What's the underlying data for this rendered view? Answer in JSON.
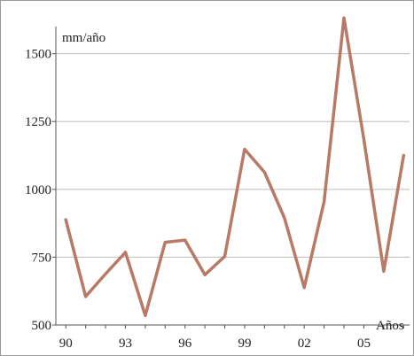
{
  "chart_data": {
    "type": "line",
    "title": "",
    "ylabel": "mm/año",
    "xlabel": "Años",
    "x": [
      1990,
      1991,
      1992,
      1993,
      1994,
      1995,
      1996,
      1997,
      1998,
      1999,
      2000,
      2001,
      2002,
      2003,
      2004,
      2005,
      2006,
      2007
    ],
    "series": [
      {
        "values": [
          888,
          605,
          688,
          768,
          535,
          805,
          813,
          685,
          753,
          1148,
          1063,
          895,
          638,
          955,
          1632,
          1185,
          698,
          1125
        ],
        "color": "#b87a66"
      }
    ],
    "ylim": [
      500,
      1600
    ],
    "xlim": [
      1989.5,
      2007.3
    ],
    "yticks": [
      500,
      750,
      1000,
      1250,
      1500
    ],
    "ytick_labels": [
      "500",
      "750",
      "1000",
      "1250",
      "1500"
    ],
    "xticks": [
      1990,
      1993,
      1996,
      1999,
      2002,
      2005
    ],
    "xtick_labels": [
      "90",
      "93",
      "96",
      "99",
      "02",
      "05"
    ],
    "grid": true
  }
}
